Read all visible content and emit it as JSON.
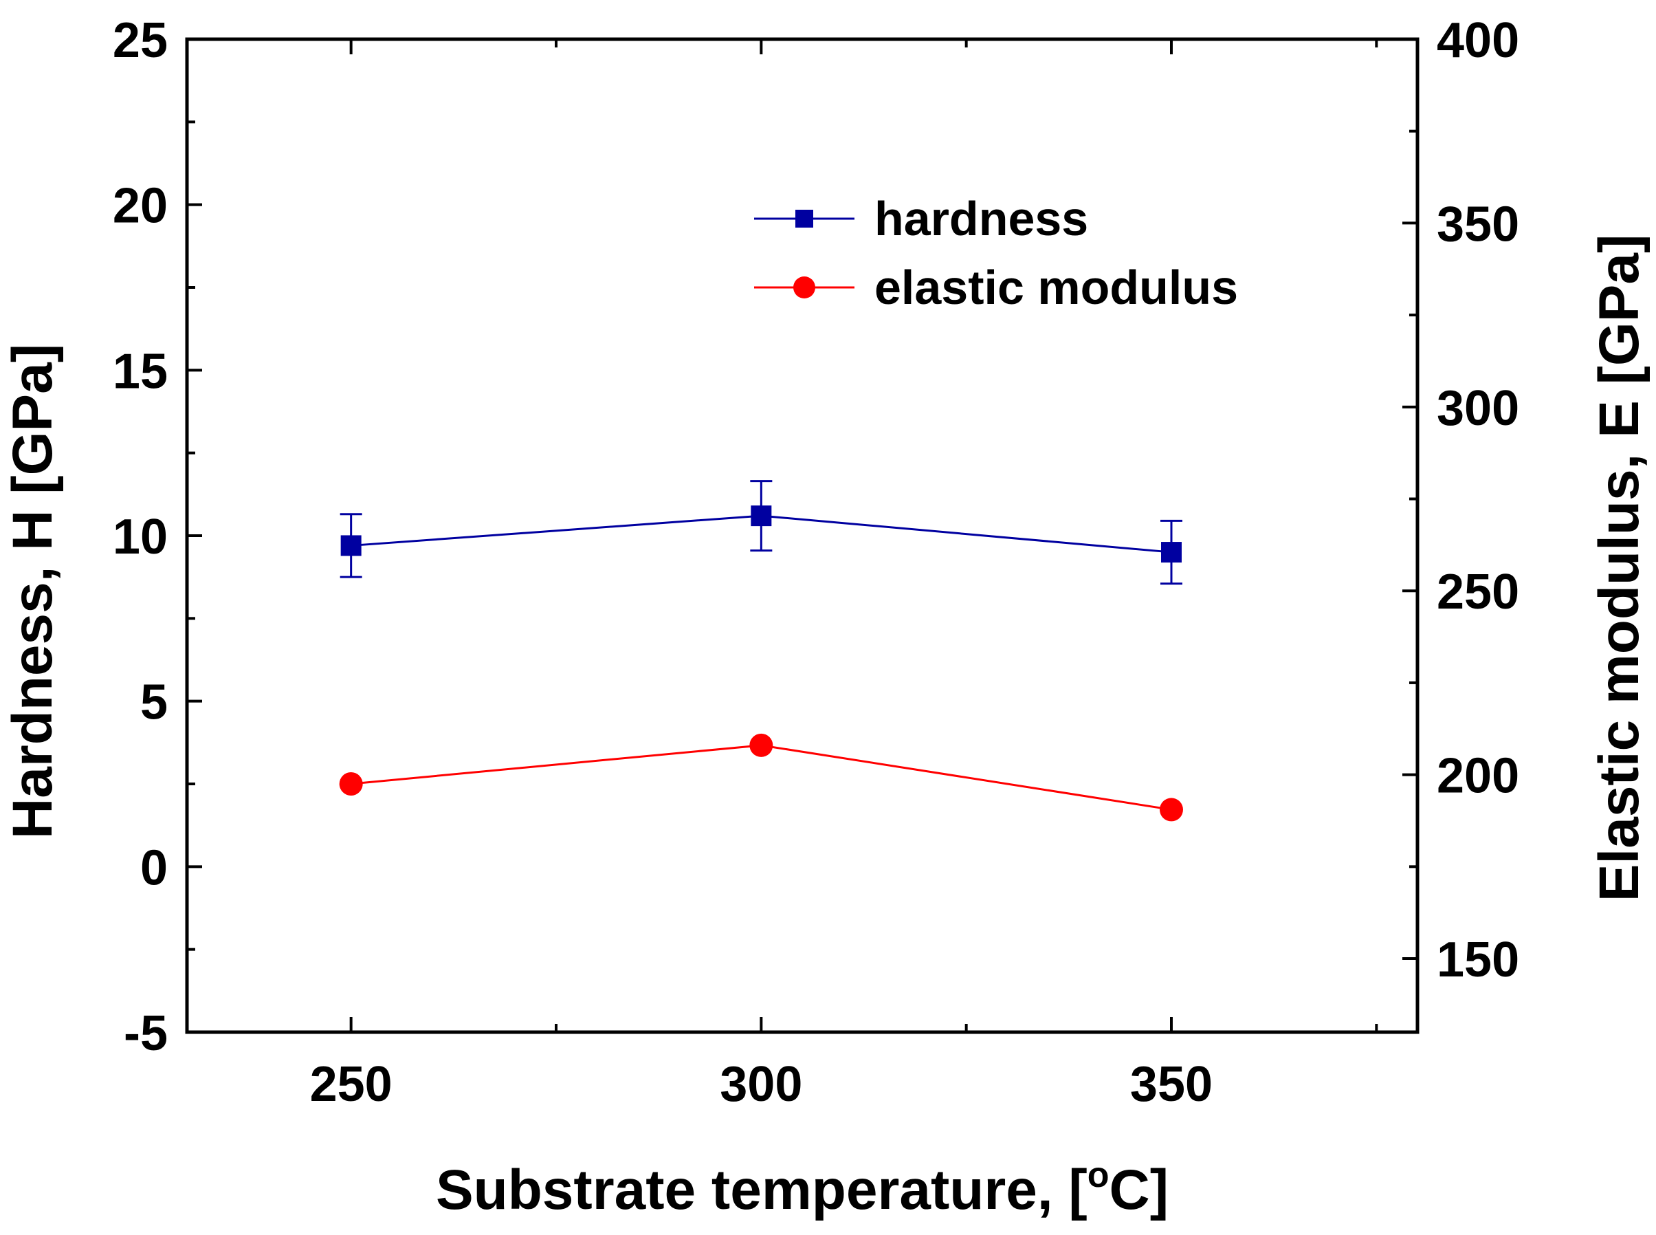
{
  "chart_data": {
    "type": "line",
    "title": "",
    "xlabel": "Substrate temperature, [°C]",
    "xlabel_parts": {
      "main": "Substrate temperature, [",
      "sup": "o",
      "unit": "C]"
    },
    "ylabel_left": "Hardness, H [GPa]",
    "ylabel_right": "Elastic modulus, E [GPa]",
    "x": [
      250,
      300,
      350
    ],
    "xlim": [
      230,
      380
    ],
    "xticks": [
      250,
      300,
      350
    ],
    "xticks_minor": [
      275,
      325,
      375
    ],
    "ylim_left": [
      -5,
      25
    ],
    "yticks_left": [
      -5,
      0,
      5,
      10,
      15,
      20,
      25
    ],
    "ylim_right": [
      130,
      400
    ],
    "yticks_right": [
      150,
      200,
      250,
      300,
      350,
      400
    ],
    "grid": false,
    "legend_position": "top-center",
    "series": [
      {
        "name": "hardness",
        "axis": "left",
        "color": "#0000a0",
        "marker": "square",
        "values": [
          9.7,
          10.6,
          9.5
        ],
        "errors": [
          0.95,
          1.05,
          0.95
        ]
      },
      {
        "name": "elastic modulus",
        "axis": "right",
        "color": "#ff0000",
        "marker": "circle",
        "values": [
          197.5,
          208,
          190.5
        ]
      }
    ]
  }
}
